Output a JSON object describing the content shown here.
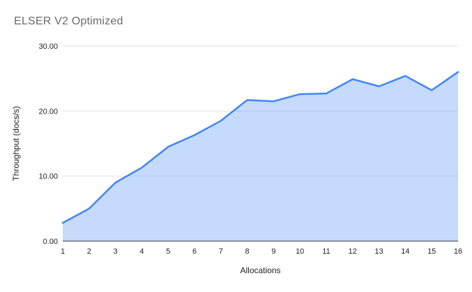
{
  "chart_data": {
    "type": "area",
    "title": "ELSER V2 Optimized",
    "xlabel": "Allocations",
    "ylabel": "Throughput (docs/s)",
    "x": [
      1,
      2,
      3,
      4,
      5,
      6,
      7,
      8,
      9,
      10,
      11,
      12,
      13,
      14,
      15,
      16
    ],
    "series": [
      {
        "name": "Throughput",
        "values": [
          2.8,
          5.0,
          9.0,
          11.3,
          14.5,
          16.3,
          18.5,
          21.7,
          21.5,
          22.6,
          22.7,
          24.9,
          23.8,
          25.4,
          23.2,
          26.0
        ]
      }
    ],
    "ylim": [
      0,
      30
    ],
    "yticks": [
      0,
      10,
      20,
      30
    ],
    "y_tick_decimals": 2,
    "grid": true,
    "legend_position": "none"
  },
  "colors": {
    "background": "#ffffff",
    "line": "#4285f4",
    "area_fill": "rgba(66,133,244,0.30)",
    "gridline": "#e3e3e3",
    "baseline": "#333333",
    "title_text": "#6b6b6b",
    "axis_text": "#222222"
  }
}
